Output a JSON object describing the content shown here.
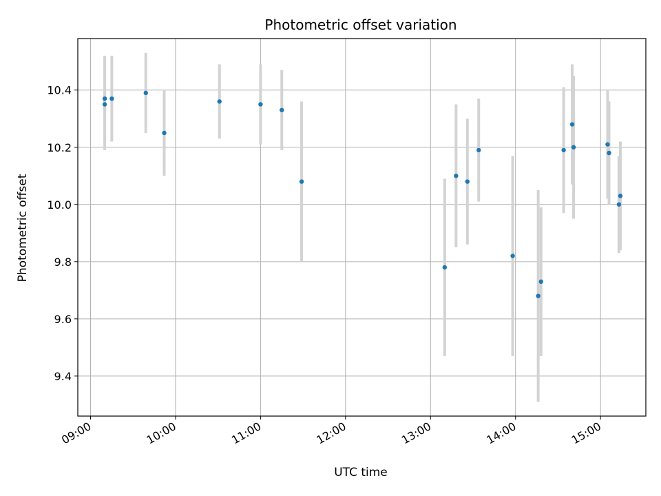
{
  "chart_data": {
    "type": "scatter",
    "title": "Photometric offset variation",
    "xlabel": "UTC time",
    "ylabel": "Photometric offset",
    "x_tick_labels": [
      "09:00",
      "10:00",
      "11:00",
      "12:00",
      "13:00",
      "14:00",
      "15:00"
    ],
    "y_tick_labels": [
      "9.4",
      "9.6",
      "9.8",
      "10.0",
      "10.2",
      "10.4"
    ],
    "xlim": [
      "08:51",
      "15:32"
    ],
    "ylim": [
      9.26,
      10.58
    ],
    "grid": true,
    "marker_color": "#1f77b4",
    "errorbar_color": "#d3d3d3",
    "points": [
      {
        "time": "09:10",
        "y": 10.37,
        "err": 0.15
      },
      {
        "time": "09:10",
        "y": 10.35,
        "err": 0.16
      },
      {
        "time": "09:15",
        "y": 10.37,
        "err": 0.15
      },
      {
        "time": "09:39",
        "y": 10.39,
        "err": 0.14
      },
      {
        "time": "09:52",
        "y": 10.25,
        "err": 0.15
      },
      {
        "time": "10:31",
        "y": 10.36,
        "err": 0.13
      },
      {
        "time": "11:00",
        "y": 10.35,
        "err": 0.14
      },
      {
        "time": "11:15",
        "y": 10.33,
        "err": 0.14
      },
      {
        "time": "11:29",
        "y": 10.08,
        "err": 0.28
      },
      {
        "time": "13:10",
        "y": 9.78,
        "err": 0.31
      },
      {
        "time": "13:18",
        "y": 10.1,
        "err": 0.25
      },
      {
        "time": "13:26",
        "y": 10.08,
        "err": 0.22
      },
      {
        "time": "13:34",
        "y": 10.19,
        "err": 0.18
      },
      {
        "time": "13:58",
        "y": 9.82,
        "err": 0.35
      },
      {
        "time": "14:16",
        "y": 9.68,
        "err": 0.37
      },
      {
        "time": "14:18",
        "y": 9.73,
        "err": 0.26
      },
      {
        "time": "14:34",
        "y": 10.19,
        "err": 0.22
      },
      {
        "time": "14:40",
        "y": 10.28,
        "err": 0.21
      },
      {
        "time": "14:41",
        "y": 10.2,
        "err": 0.25
      },
      {
        "time": "15:05",
        "y": 10.21,
        "err": 0.19
      },
      {
        "time": "15:06",
        "y": 10.18,
        "err": 0.18
      },
      {
        "time": "15:13",
        "y": 10.0,
        "err": 0.17
      },
      {
        "time": "15:14",
        "y": 10.03,
        "err": 0.19
      }
    ]
  }
}
